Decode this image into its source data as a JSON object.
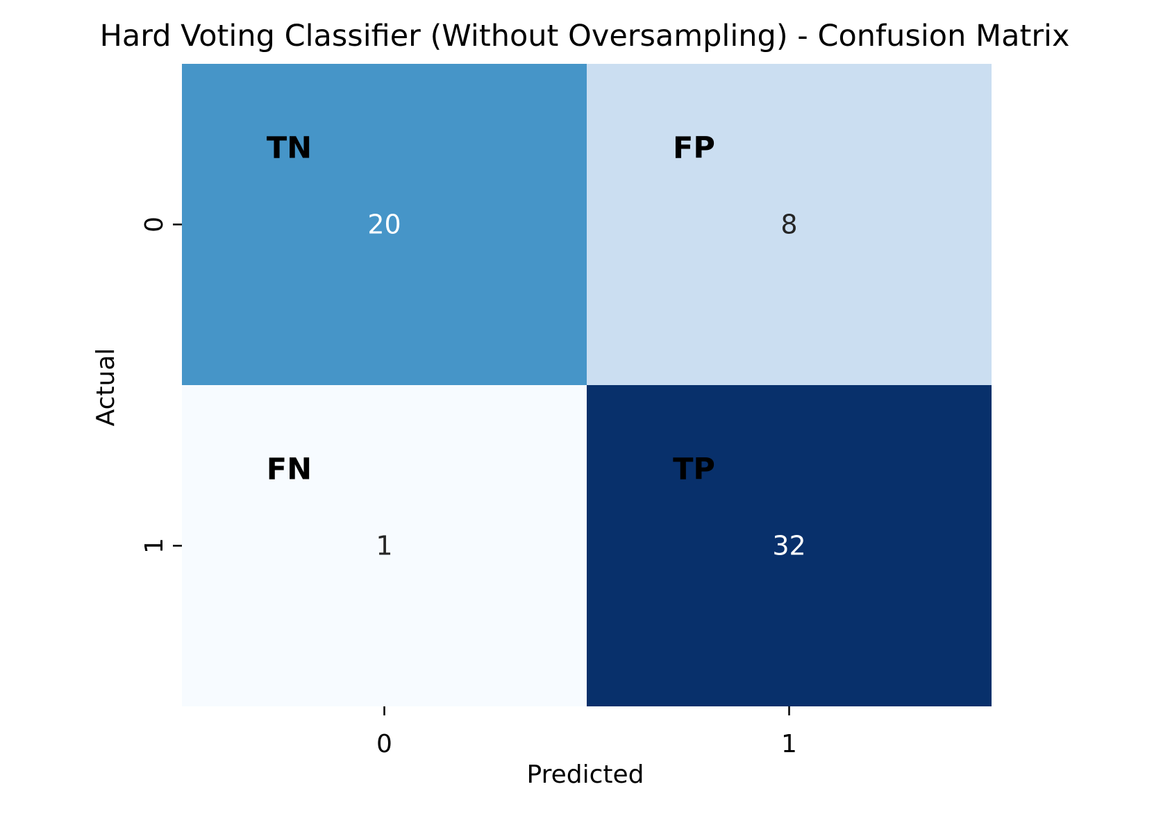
{
  "chart_data": {
    "type": "heatmap",
    "title": "Hard Voting Classifier (Without Oversampling) - Confusion Matrix",
    "xlabel": "Predicted",
    "ylabel": "Actual",
    "x_categories": [
      "0",
      "1"
    ],
    "y_categories": [
      "0",
      "1"
    ],
    "values": [
      [
        20,
        8
      ],
      [
        1,
        32
      ]
    ],
    "value_labels": [
      [
        "20",
        "8"
      ],
      [
        "1",
        "32"
      ]
    ],
    "cell_annotations": [
      [
        "TN",
        "FP"
      ],
      [
        "FN",
        "TP"
      ]
    ],
    "colormap": "Blues",
    "vmin": 1,
    "vmax": 32,
    "colorbar": false,
    "grid": false
  }
}
